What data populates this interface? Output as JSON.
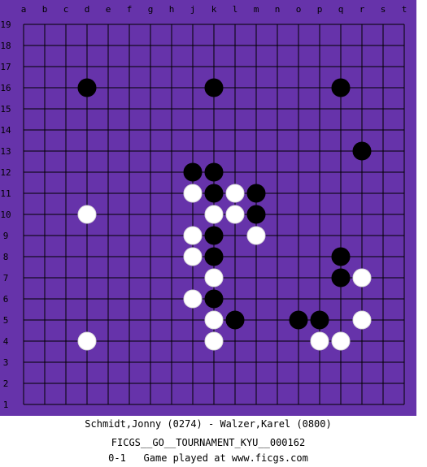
{
  "board": {
    "size": 19,
    "columns": [
      "a",
      "b",
      "c",
      "d",
      "e",
      "f",
      "g",
      "h",
      "j",
      "k",
      "l",
      "m",
      "n",
      "o",
      "p",
      "q",
      "r",
      "s",
      "t"
    ],
    "rows": [
      "19",
      "18",
      "17",
      "16",
      "15",
      "14",
      "13",
      "12",
      "11",
      "10",
      "9",
      "8",
      "7",
      "6",
      "5",
      "4",
      "3",
      "2",
      "1"
    ],
    "colors": {
      "background": "#6633aa",
      "grid": "#000000",
      "black_stone": "#000000",
      "white_stone": "#ffffff"
    },
    "stones": {
      "black": [
        "d16",
        "k16",
        "q16",
        "r13",
        "j12",
        "k12",
        "k11",
        "m11",
        "m10",
        "k9",
        "k8",
        "q8",
        "q7",
        "k6",
        "l5",
        "o5",
        "p5"
      ],
      "white": [
        "j11",
        "l11",
        "d10",
        "k10",
        "l10",
        "j9",
        "m9",
        "j8",
        "k7",
        "r7",
        "j6",
        "k5",
        "r5",
        "d4",
        "k4",
        "p4",
        "q4"
      ]
    }
  },
  "caption": {
    "players": "Schmidt,Jonny (0274) - Walzer,Karel (0800)",
    "event": "FICGS__GO__TOURNAMENT_KYU__000162",
    "result_line": "0-1   Game played at www.ficgs.com"
  }
}
